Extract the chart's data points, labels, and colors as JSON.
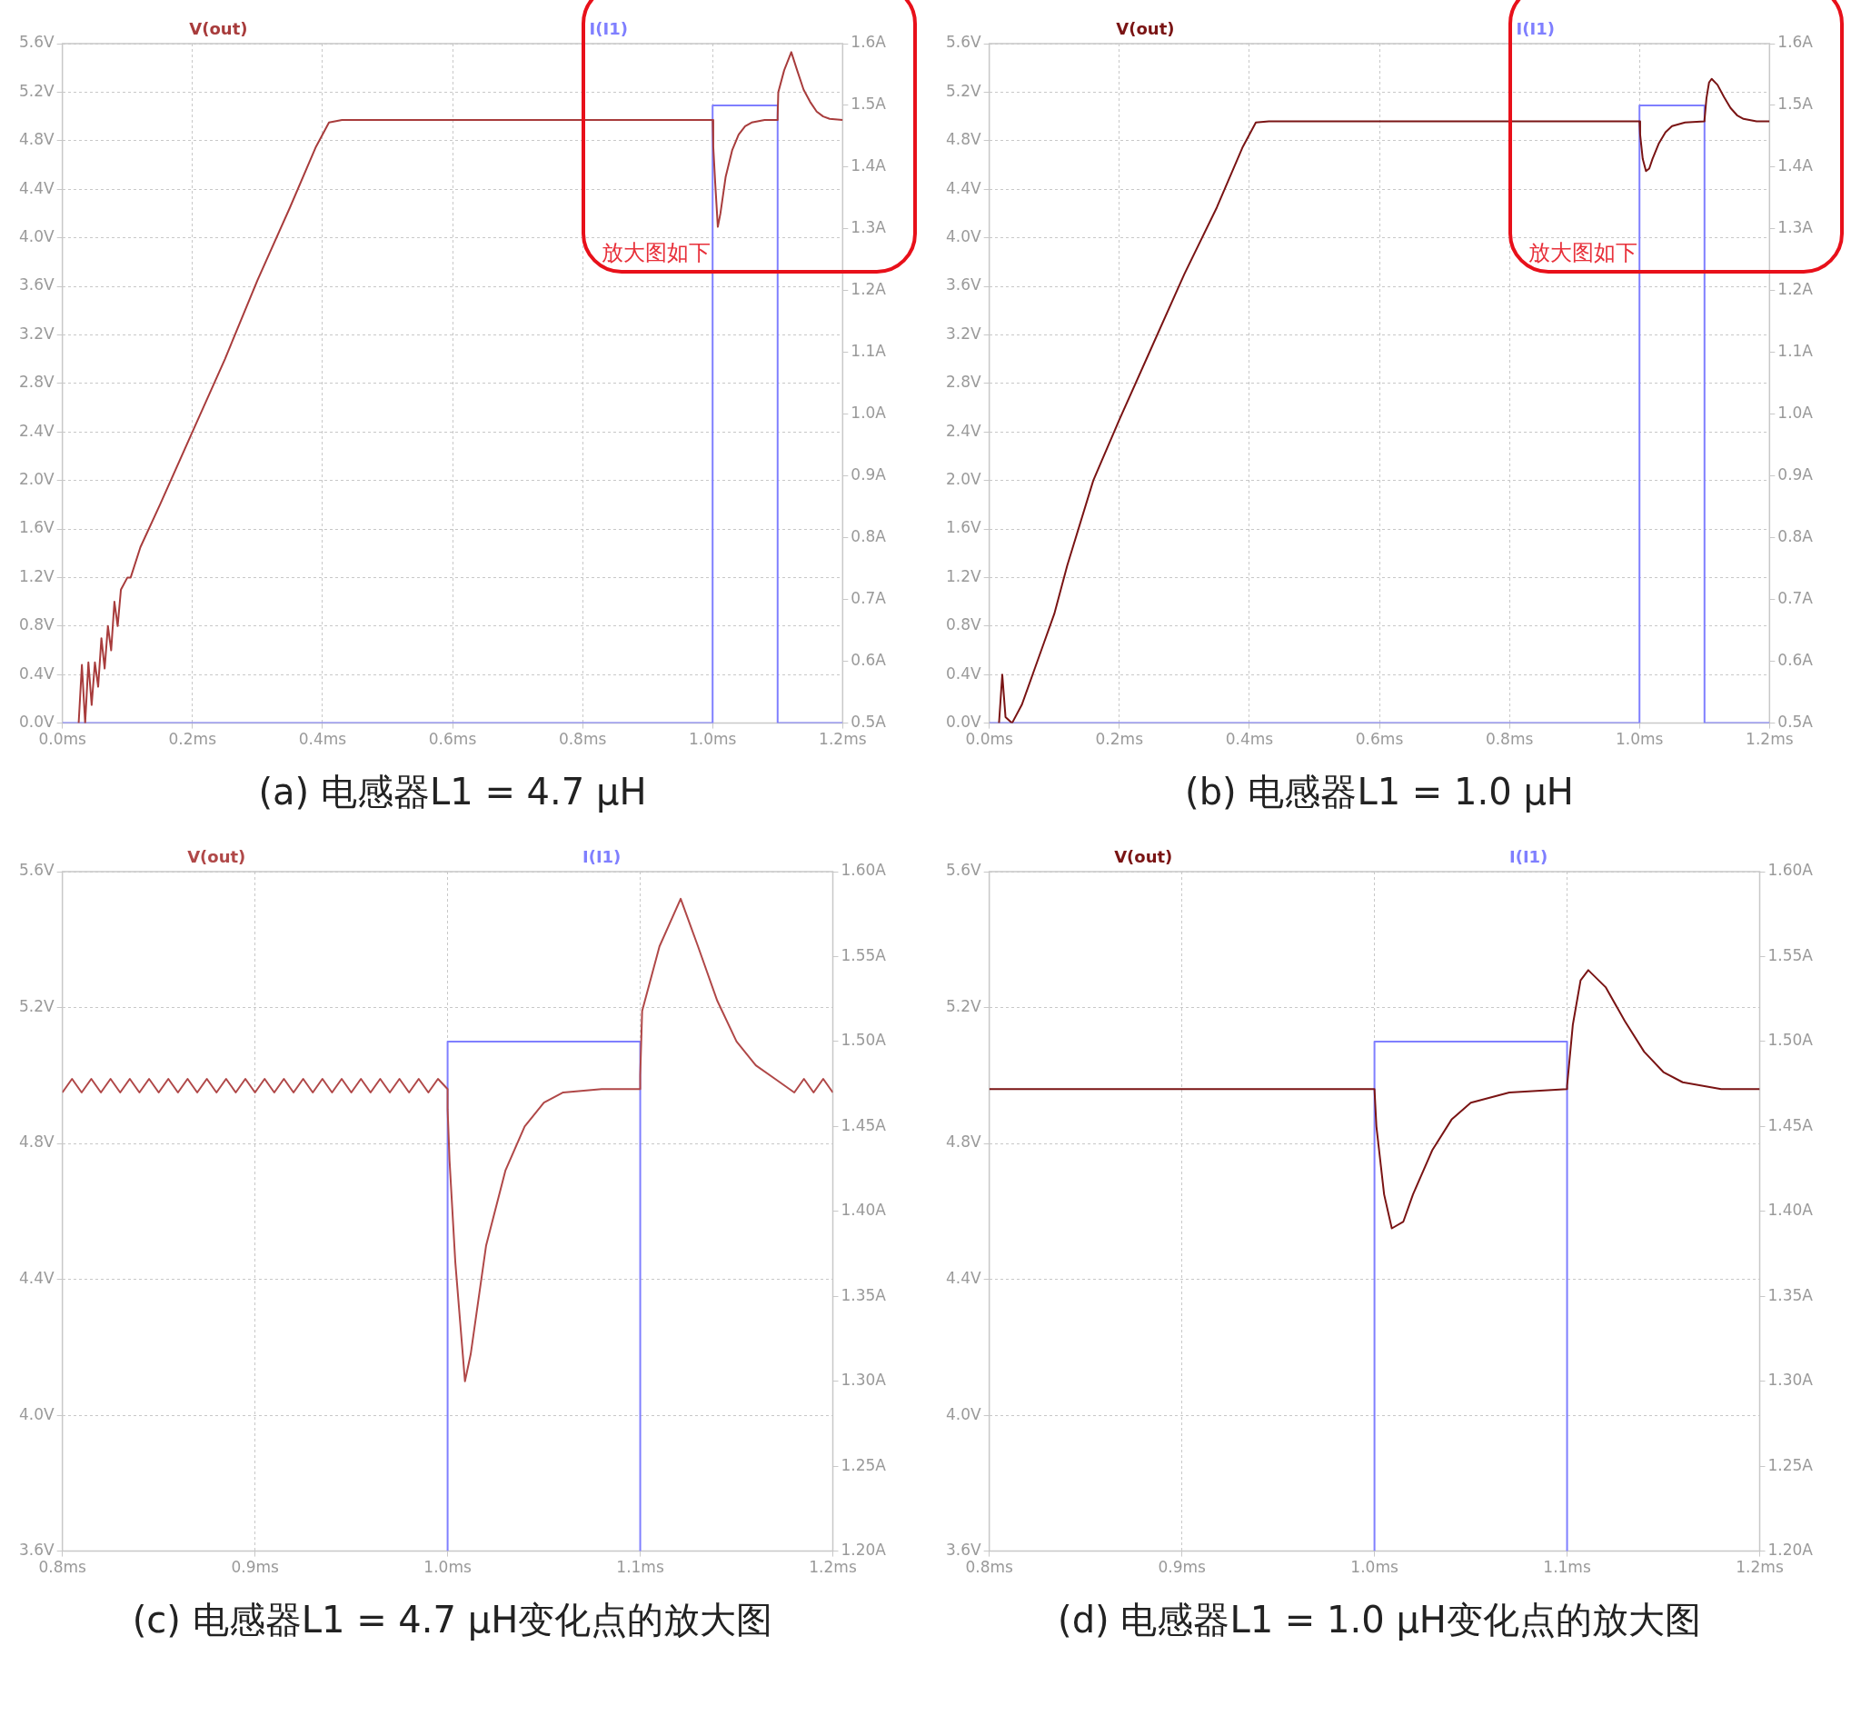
{
  "chart_data": [
    {
      "type": "line",
      "title": "(a) 电感器L1 = 4.7 μH",
      "annotations": [
        "放大图如下"
      ],
      "grid": true,
      "legend": "top",
      "line_style": "solid",
      "marker": "none",
      "xlim": [
        0,
        1.2
      ],
      "xticks": [
        {
          "value": 0,
          "label": "0.0ms"
        },
        {
          "value": 0.2,
          "label": "0.2ms"
        },
        {
          "value": 0.4,
          "label": "0.4ms"
        },
        {
          "value": 0.6,
          "label": "0.6ms"
        },
        {
          "value": 0.8,
          "label": "0.8ms"
        },
        {
          "value": 1.0,
          "label": "1.0ms"
        },
        {
          "value": 1.2,
          "label": "1.2ms"
        }
      ],
      "ylim": [
        0,
        5.6
      ],
      "yticks": [
        {
          "value": 0,
          "label": "0.0V"
        },
        {
          "value": 0.4,
          "label": "0.4V"
        },
        {
          "value": 0.8,
          "label": "0.8V"
        },
        {
          "value": 1.2,
          "label": "1.2V"
        },
        {
          "value": 1.6,
          "label": "1.6V"
        },
        {
          "value": 2.0,
          "label": "2.0V"
        },
        {
          "value": 2.4,
          "label": "2.4V"
        },
        {
          "value": 2.8,
          "label": "2.8V"
        },
        {
          "value": 3.2,
          "label": "3.2V"
        },
        {
          "value": 3.6,
          "label": "3.6V"
        },
        {
          "value": 4.0,
          "label": "4.0V"
        },
        {
          "value": 4.4,
          "label": "4.4V"
        },
        {
          "value": 4.8,
          "label": "4.8V"
        },
        {
          "value": 5.2,
          "label": "5.2V"
        },
        {
          "value": 5.6,
          "label": "5.6V"
        }
      ],
      "y2lim": [
        0.5,
        1.6
      ],
      "y2ticks": [
        {
          "value": 0.5,
          "label": "0.5A"
        },
        {
          "value": 0.6,
          "label": "0.6A"
        },
        {
          "value": 0.7,
          "label": "0.7A"
        },
        {
          "value": 0.8,
          "label": "0.8A"
        },
        {
          "value": 0.9,
          "label": "0.9A"
        },
        {
          "value": 1.0,
          "label": "1.0A"
        },
        {
          "value": 1.1,
          "label": "1.1A"
        },
        {
          "value": 1.2,
          "label": "1.2A"
        },
        {
          "value": 1.3,
          "label": "1.3A"
        },
        {
          "value": 1.4,
          "label": "1.4A"
        },
        {
          "value": 1.5,
          "label": "1.5A"
        },
        {
          "value": 1.6,
          "label": "1.6A"
        }
      ],
      "series": [
        {
          "name": "V(out)",
          "color": "#a83c3c",
          "x": [
            0.025,
            0.03,
            0.035,
            0.04,
            0.045,
            0.05,
            0.055,
            0.06,
            0.065,
            0.07,
            0.075,
            0.08,
            0.085,
            0.09,
            0.1,
            0.105,
            0.12,
            0.15,
            0.2,
            0.25,
            0.3,
            0.35,
            0.39,
            0.41,
            0.43,
            0.6,
            0.8,
            1.0,
            1.001,
            1.004,
            1.008,
            1.012,
            1.02,
            1.03,
            1.04,
            1.05,
            1.06,
            1.08,
            1.1,
            1.1,
            1.101,
            1.11,
            1.121,
            1.13,
            1.14,
            1.15,
            1.16,
            1.17,
            1.18,
            1.2
          ],
          "values": [
            0,
            0.48,
            0,
            0.5,
            0.15,
            0.5,
            0.3,
            0.7,
            0.45,
            0.8,
            0.6,
            1.0,
            0.8,
            1.1,
            1.2,
            1.2,
            1.45,
            1.8,
            2.4,
            3.0,
            3.65,
            4.25,
            4.75,
            4.95,
            4.97,
            4.97,
            4.97,
            4.97,
            4.75,
            4.45,
            4.09,
            4.2,
            4.5,
            4.72,
            4.85,
            4.92,
            4.95,
            4.97,
            4.97,
            5.0,
            5.2,
            5.38,
            5.53,
            5.38,
            5.22,
            5.12,
            5.04,
            5.0,
            4.98,
            4.97
          ]
        },
        {
          "name": "I(I1)",
          "color": "#7f7fff",
          "axis": "y2",
          "x": [
            0,
            1.0,
            1.0,
            1.1,
            1.1,
            1.2
          ],
          "values": [
            0.5,
            0.5,
            1.5,
            1.5,
            0.5,
            0.5
          ]
        }
      ]
    },
    {
      "type": "line",
      "title": "(b) 电感器L1 = 1.0 μH",
      "annotations": [
        "放大图如下"
      ],
      "grid": true,
      "legend": "top",
      "line_style": "solid",
      "marker": "none",
      "xlim": [
        0,
        1.2
      ],
      "xticks": [
        {
          "value": 0,
          "label": "0.0ms"
        },
        {
          "value": 0.2,
          "label": "0.2ms"
        },
        {
          "value": 0.4,
          "label": "0.4ms"
        },
        {
          "value": 0.6,
          "label": "0.6ms"
        },
        {
          "value": 0.8,
          "label": "0.8ms"
        },
        {
          "value": 1.0,
          "label": "1.0ms"
        },
        {
          "value": 1.2,
          "label": "1.2ms"
        }
      ],
      "ylim": [
        0,
        5.6
      ],
      "yticks": [
        {
          "value": 0,
          "label": "0.0V"
        },
        {
          "value": 0.4,
          "label": "0.4V"
        },
        {
          "value": 0.8,
          "label": "0.8V"
        },
        {
          "value": 1.2,
          "label": "1.2V"
        },
        {
          "value": 1.6,
          "label": "1.6V"
        },
        {
          "value": 2.0,
          "label": "2.0V"
        },
        {
          "value": 2.4,
          "label": "2.4V"
        },
        {
          "value": 2.8,
          "label": "2.8V"
        },
        {
          "value": 3.2,
          "label": "3.2V"
        },
        {
          "value": 3.6,
          "label": "3.6V"
        },
        {
          "value": 4.0,
          "label": "4.0V"
        },
        {
          "value": 4.4,
          "label": "4.4V"
        },
        {
          "value": 4.8,
          "label": "4.8V"
        },
        {
          "value": 5.2,
          "label": "5.2V"
        },
        {
          "value": 5.6,
          "label": "5.6V"
        }
      ],
      "y2lim": [
        0.5,
        1.6
      ],
      "y2ticks": [
        {
          "value": 0.5,
          "label": "0.5A"
        },
        {
          "value": 0.6,
          "label": "0.6A"
        },
        {
          "value": 0.7,
          "label": "0.7A"
        },
        {
          "value": 0.8,
          "label": "0.8A"
        },
        {
          "value": 0.9,
          "label": "0.9A"
        },
        {
          "value": 1.0,
          "label": "1.0A"
        },
        {
          "value": 1.1,
          "label": "1.1A"
        },
        {
          "value": 1.2,
          "label": "1.2A"
        },
        {
          "value": 1.3,
          "label": "1.3A"
        },
        {
          "value": 1.4,
          "label": "1.4A"
        },
        {
          "value": 1.5,
          "label": "1.5A"
        },
        {
          "value": 1.6,
          "label": "1.6A"
        }
      ],
      "series": [
        {
          "name": "V(out)",
          "color": "#7a1414",
          "x": [
            0.015,
            0.02,
            0.025,
            0.035,
            0.05,
            0.06,
            0.07,
            0.08,
            0.1,
            0.12,
            0.16,
            0.2,
            0.25,
            0.3,
            0.35,
            0.39,
            0.41,
            0.43,
            0.6,
            0.8,
            1.0,
            1.001,
            1.005,
            1.01,
            1.015,
            1.02,
            1.03,
            1.04,
            1.05,
            1.07,
            1.1,
            1.1,
            1.103,
            1.107,
            1.111,
            1.12,
            1.13,
            1.14,
            1.15,
            1.16,
            1.18,
            1.2
          ],
          "values": [
            0,
            0.4,
            0.05,
            0,
            0.15,
            0.3,
            0.45,
            0.6,
            0.9,
            1.3,
            2.0,
            2.5,
            3.1,
            3.7,
            4.25,
            4.75,
            4.95,
            4.96,
            4.96,
            4.96,
            4.96,
            4.85,
            4.65,
            4.55,
            4.57,
            4.65,
            4.78,
            4.87,
            4.92,
            4.95,
            4.96,
            4.97,
            5.15,
            5.28,
            5.31,
            5.26,
            5.16,
            5.07,
            5.01,
            4.98,
            4.96,
            4.96
          ]
        },
        {
          "name": "I(I1)",
          "color": "#7f7fff",
          "axis": "y2",
          "x": [
            0,
            1.0,
            1.0,
            1.1,
            1.1,
            1.2
          ],
          "values": [
            0.5,
            0.5,
            1.5,
            1.5,
            0.5,
            0.5
          ]
        }
      ]
    },
    {
      "type": "line",
      "title": "(c) 电感器L1 = 4.7 μH变化点的放大图",
      "grid": true,
      "legend": "top",
      "line_style": "solid",
      "marker": "none",
      "xlim": [
        0.8,
        1.2
      ],
      "xticks": [
        {
          "value": 0.8,
          "label": "0.8ms"
        },
        {
          "value": 0.9,
          "label": "0.9ms"
        },
        {
          "value": 1.0,
          "label": "1.0ms"
        },
        {
          "value": 1.1,
          "label": "1.1ms"
        },
        {
          "value": 1.2,
          "label": "1.2ms"
        }
      ],
      "ylim": [
        3.6,
        5.6
      ],
      "yticks": [
        {
          "value": 3.6,
          "label": "3.6V"
        },
        {
          "value": 4.0,
          "label": "4.0V"
        },
        {
          "value": 4.4,
          "label": "4.4V"
        },
        {
          "value": 4.8,
          "label": "4.8V"
        },
        {
          "value": 5.2,
          "label": "5.2V"
        },
        {
          "value": 5.6,
          "label": "5.6V"
        }
      ],
      "y2lim": [
        1.2,
        1.6
      ],
      "y2ticks": [
        {
          "value": 1.2,
          "label": "1.20A"
        },
        {
          "value": 1.25,
          "label": "1.25A"
        },
        {
          "value": 1.3,
          "label": "1.30A"
        },
        {
          "value": 1.35,
          "label": "1.35A"
        },
        {
          "value": 1.4,
          "label": "1.40A"
        },
        {
          "value": 1.45,
          "label": "1.45A"
        },
        {
          "value": 1.5,
          "label": "1.50A"
        },
        {
          "value": 1.55,
          "label": "1.55A"
        },
        {
          "value": 1.6,
          "label": "1.60A"
        }
      ],
      "series": [
        {
          "name": "V(out)",
          "color": "#b04848",
          "x": [
            0.8,
            0.805,
            0.81,
            0.815,
            0.82,
            0.825,
            0.83,
            0.835,
            0.84,
            0.845,
            0.85,
            0.855,
            0.86,
            0.865,
            0.87,
            0.875,
            0.88,
            0.885,
            0.89,
            0.895,
            0.9,
            0.905,
            0.91,
            0.915,
            0.92,
            0.925,
            0.93,
            0.935,
            0.94,
            0.945,
            0.95,
            0.955,
            0.96,
            0.965,
            0.97,
            0.975,
            0.98,
            0.985,
            0.99,
            0.995,
            1.0,
            1.0,
            1.001,
            1.004,
            1.009,
            1.012,
            1.02,
            1.03,
            1.04,
            1.05,
            1.06,
            1.08,
            1.1,
            1.1,
            1.101,
            1.11,
            1.121,
            1.13,
            1.14,
            1.15,
            1.16,
            1.17,
            1.18,
            1.185,
            1.19,
            1.195,
            1.2
          ],
          "values": [
            4.95,
            4.99,
            4.95,
            4.99,
            4.95,
            4.99,
            4.95,
            4.99,
            4.95,
            4.99,
            4.95,
            4.99,
            4.95,
            4.99,
            4.95,
            4.99,
            4.95,
            4.99,
            4.95,
            4.99,
            4.95,
            4.99,
            4.95,
            4.99,
            4.95,
            4.99,
            4.95,
            4.99,
            4.95,
            4.99,
            4.95,
            4.99,
            4.95,
            4.99,
            4.95,
            4.99,
            4.95,
            4.99,
            4.95,
            4.99,
            4.96,
            4.9,
            4.75,
            4.45,
            4.1,
            4.18,
            4.5,
            4.72,
            4.85,
            4.92,
            4.95,
            4.96,
            4.96,
            5.0,
            5.19,
            5.38,
            5.52,
            5.38,
            5.22,
            5.1,
            5.03,
            4.99,
            4.95,
            4.99,
            4.95,
            4.99,
            4.95
          ]
        },
        {
          "name": "I(I1)",
          "color": "#7f7fff",
          "axis": "y2",
          "x": [
            1.0,
            1.0,
            1.1,
            1.1
          ],
          "values": [
            1.2,
            1.5,
            1.5,
            1.2
          ]
        }
      ]
    },
    {
      "type": "line",
      "title": "(d) 电感器L1 = 1.0 μH变化点的放大图",
      "grid": true,
      "legend": "top",
      "line_style": "solid",
      "marker": "none",
      "xlim": [
        0.8,
        1.2
      ],
      "xticks": [
        {
          "value": 0.8,
          "label": "0.8ms"
        },
        {
          "value": 0.9,
          "label": "0.9ms"
        },
        {
          "value": 1.0,
          "label": "1.0ms"
        },
        {
          "value": 1.1,
          "label": "1.1ms"
        },
        {
          "value": 1.2,
          "label": "1.2ms"
        }
      ],
      "ylim": [
        3.6,
        5.6
      ],
      "yticks": [
        {
          "value": 3.6,
          "label": "3.6V"
        },
        {
          "value": 4.0,
          "label": "4.0V"
        },
        {
          "value": 4.4,
          "label": "4.4V"
        },
        {
          "value": 4.8,
          "label": "4.8V"
        },
        {
          "value": 5.2,
          "label": "5.2V"
        },
        {
          "value": 5.6,
          "label": "5.6V"
        }
      ],
      "y2lim": [
        1.2,
        1.6
      ],
      "y2ticks": [
        {
          "value": 1.2,
          "label": "1.20A"
        },
        {
          "value": 1.25,
          "label": "1.25A"
        },
        {
          "value": 1.3,
          "label": "1.30A"
        },
        {
          "value": 1.35,
          "label": "1.35A"
        },
        {
          "value": 1.4,
          "label": "1.40A"
        },
        {
          "value": 1.45,
          "label": "1.45A"
        },
        {
          "value": 1.5,
          "label": "1.50A"
        },
        {
          "value": 1.55,
          "label": "1.55A"
        },
        {
          "value": 1.6,
          "label": "1.60A"
        }
      ],
      "series": [
        {
          "name": "V(out)",
          "color": "#7a1414",
          "x": [
            0.8,
            0.9,
            1.0,
            1.001,
            1.005,
            1.009,
            1.015,
            1.02,
            1.03,
            1.04,
            1.05,
            1.07,
            1.1,
            1.1,
            1.103,
            1.107,
            1.111,
            1.12,
            1.13,
            1.14,
            1.15,
            1.16,
            1.18,
            1.2
          ],
          "values": [
            4.96,
            4.96,
            4.96,
            4.85,
            4.65,
            4.55,
            4.57,
            4.65,
            4.78,
            4.87,
            4.92,
            4.95,
            4.96,
            4.97,
            5.15,
            5.28,
            5.31,
            5.26,
            5.16,
            5.07,
            5.01,
            4.98,
            4.96,
            4.96
          ]
        },
        {
          "name": "I(I1)",
          "color": "#7f7fff",
          "axis": "y2",
          "x": [
            1.0,
            1.0,
            1.1,
            1.1
          ],
          "values": [
            1.2,
            1.5,
            1.5,
            1.2
          ]
        }
      ]
    }
  ]
}
